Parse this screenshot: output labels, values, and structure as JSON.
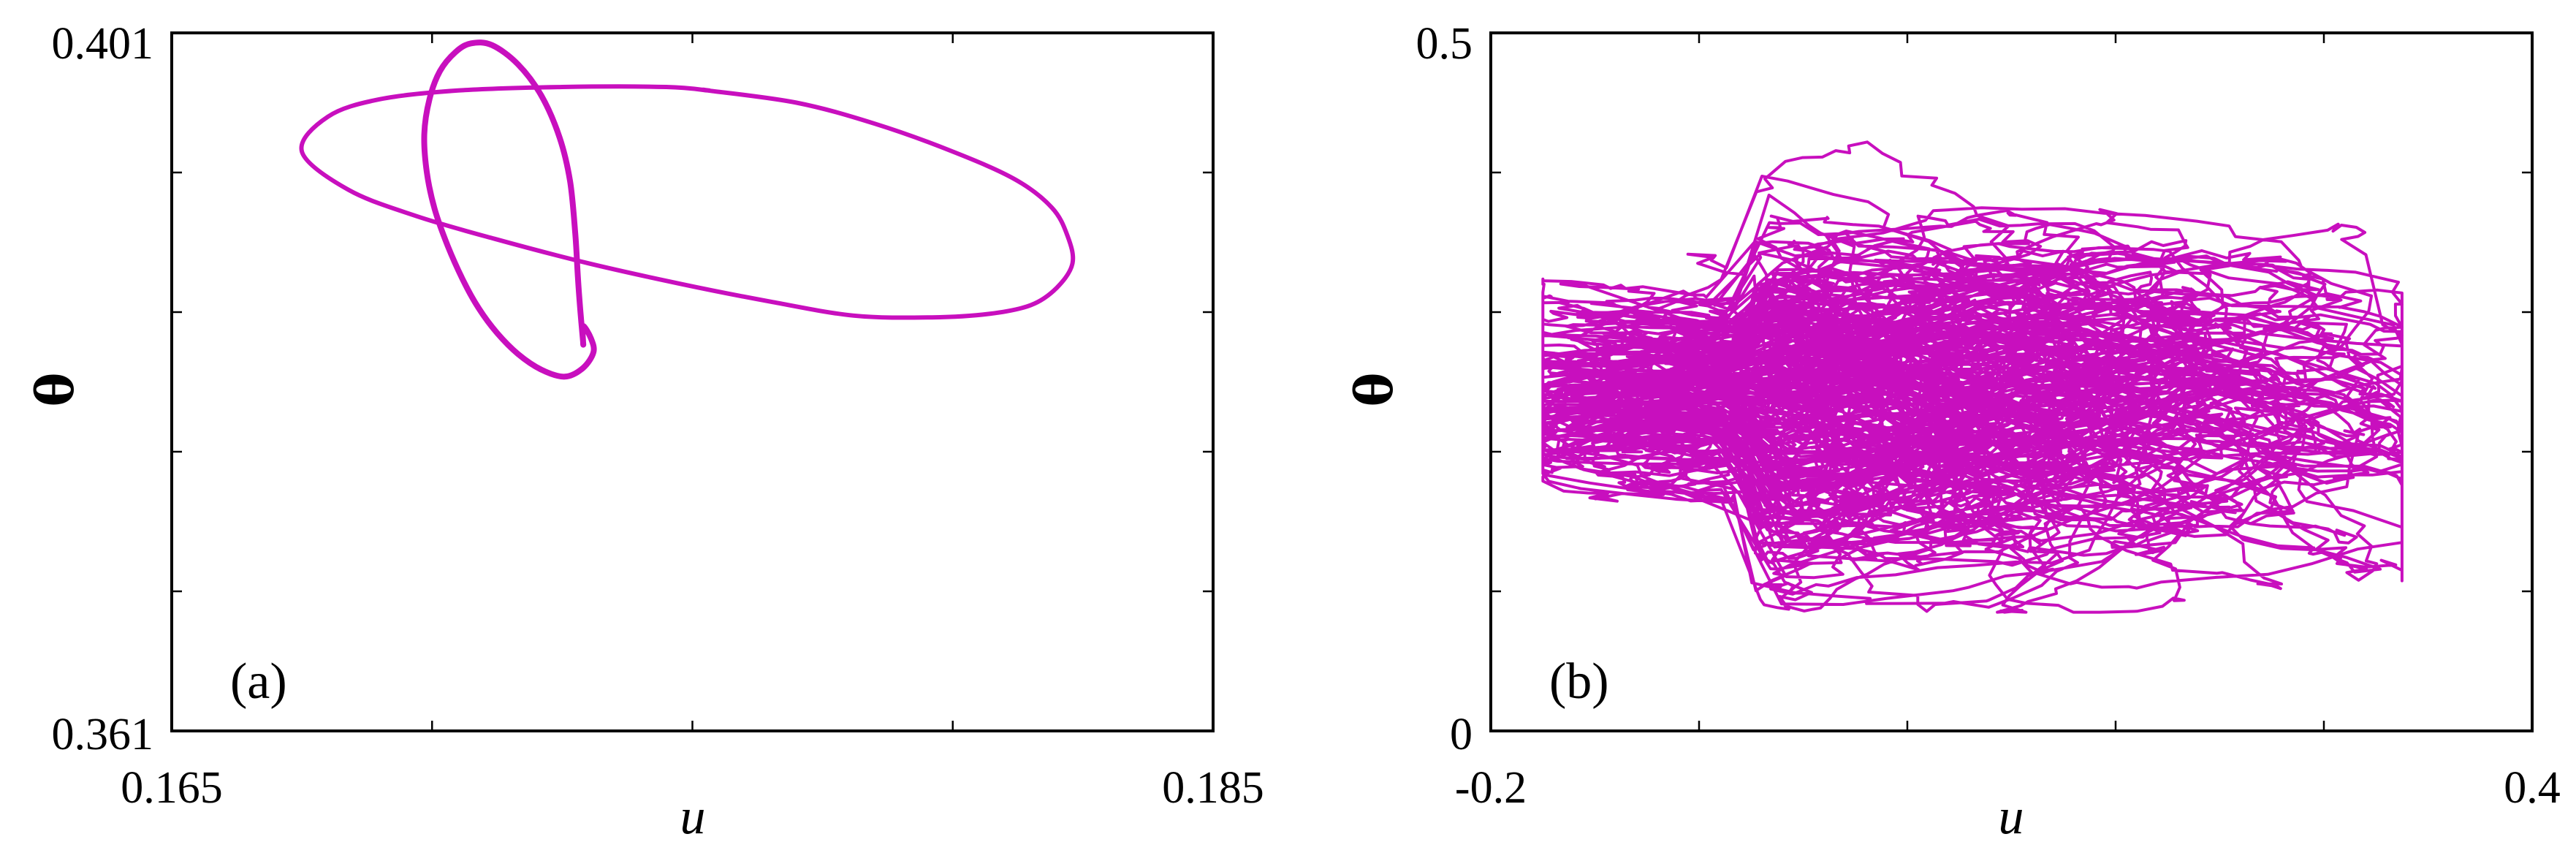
{
  "colors": {
    "curve": "#c80fbe",
    "axes": "#000000"
  },
  "chart_data": [
    {
      "type": "line",
      "panel_label": "(a)",
      "xlabel": "u",
      "ylabel": "θ",
      "xlim": [
        0.165,
        0.185
      ],
      "ylim": [
        0.361,
        0.401
      ],
      "x_tick_labels": [
        "0.165",
        "0.185"
      ],
      "y_tick_labels": [
        "0.401",
        "0.361"
      ],
      "minor_x_ticks": [
        0.165,
        0.17,
        0.175,
        0.18,
        0.185
      ],
      "minor_y_ticks": [
        0.361,
        0.369,
        0.377,
        0.385,
        0.393,
        0.401
      ],
      "grid": false,
      "series": [
        {
          "x": [
            0.1753,
            0.177,
            0.1785,
            0.18,
            0.1812,
            0.1819,
            0.1822,
            0.1823,
            0.182,
            0.1815,
            0.1807,
            0.1796,
            0.1781,
            0.1765,
            0.1748,
            0.173,
            0.1712,
            0.1697,
            0.1684,
            0.1675,
            0.168,
            0.169,
            0.1705,
            0.1725,
            0.1745,
            0.1753
          ],
          "y": [
            0.3977,
            0.397,
            0.3958,
            0.3942,
            0.3926,
            0.391,
            0.3894,
            0.3878,
            0.3864,
            0.3854,
            0.3849,
            0.3847,
            0.3848,
            0.3856,
            0.3866,
            0.3878,
            0.3892,
            0.3905,
            0.392,
            0.3942,
            0.3962,
            0.3972,
            0.3977,
            0.3979,
            0.3979,
            0.3977
          ]
        },
        {
          "x": [
            0.1729,
            0.17285,
            0.1728,
            0.17275,
            0.17265,
            0.17245,
            0.1721,
            0.17165,
            0.17115,
            0.17075,
            0.17045,
            0.17015,
            0.16995,
            0.16985,
            0.1699,
            0.17005,
            0.1703,
            0.1706,
            0.1709,
            0.17125,
            0.17165,
            0.1721,
            0.17255,
            0.1729,
            0.1731,
            0.17305,
            0.1729,
            0.1729
          ],
          "y": [
            0.3833,
            0.385,
            0.387,
            0.3895,
            0.3925,
            0.395,
            0.3974,
            0.3992,
            0.4003,
            0.4004,
            0.3999,
            0.3988,
            0.3972,
            0.3952,
            0.393,
            0.3909,
            0.3888,
            0.3868,
            0.3852,
            0.3838,
            0.3826,
            0.3817,
            0.3813,
            0.3818,
            0.3827,
            0.3835,
            0.3842,
            0.3833
          ]
        }
      ]
    },
    {
      "type": "line",
      "panel_label": "(b)",
      "xlabel": "u",
      "ylabel": "θ",
      "xlim": [
        -0.2,
        0.4
      ],
      "ylim": [
        0,
        0.5
      ],
      "x_tick_labels": [
        "-0.2",
        "0.4"
      ],
      "y_tick_labels": [
        "0.5",
        "0"
      ],
      "minor_x_ticks": [
        -0.2,
        -0.08,
        0.04,
        0.16,
        0.28,
        0.4
      ],
      "minor_y_ticks": [
        0,
        0.1,
        0.2,
        0.3,
        0.4,
        0.5
      ],
      "grid": false,
      "trajectory_seed": 7,
      "trajectory_steps": 9000
    }
  ]
}
